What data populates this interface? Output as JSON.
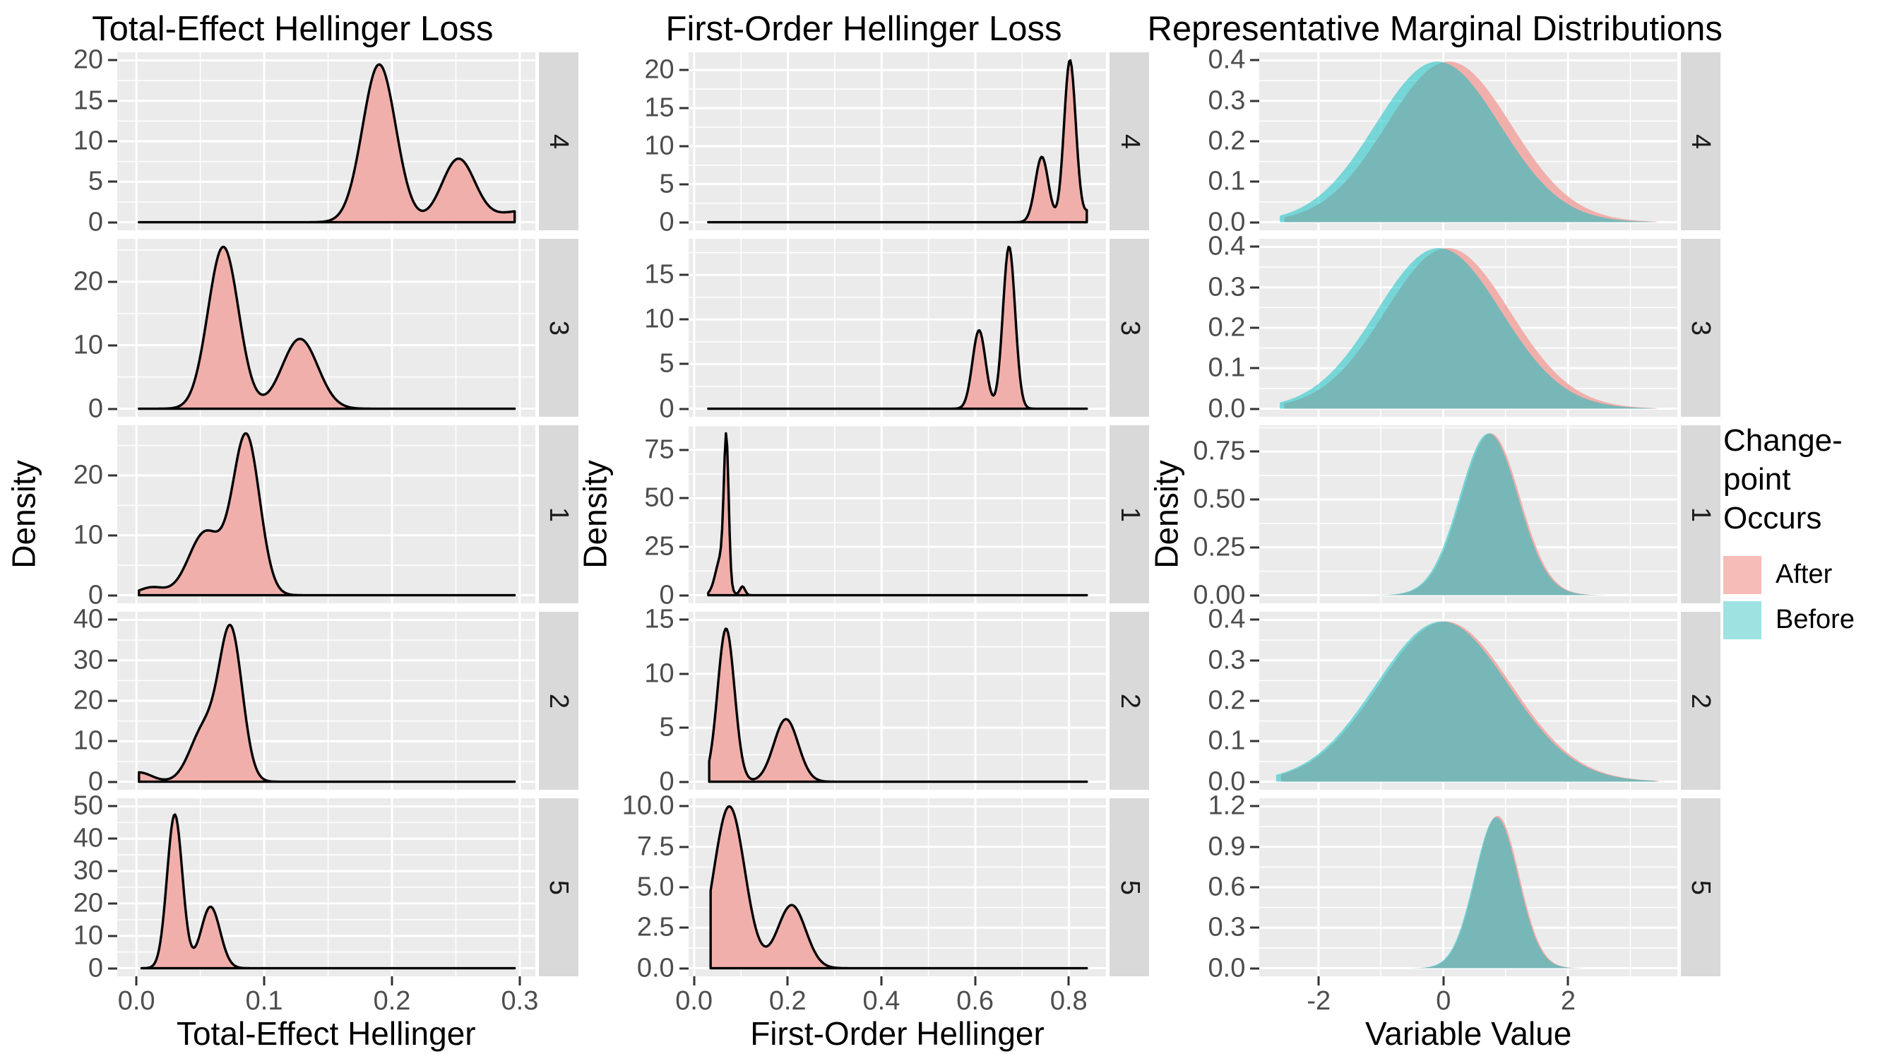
{
  "figure_type": "faceted_density_small_multiples",
  "facet_order": [
    "4",
    "3",
    "1",
    "2",
    "5"
  ],
  "style": {
    "panel_bg": "#EBEBEB",
    "strip_bg": "#D9D9D9",
    "grid_color": "#FFFFFF",
    "after_fill": "#F1AFAB",
    "before_fill": "rgba(0,191,196,0.5)",
    "density_stroke": "#000000",
    "tick_text": "#4D4D4D"
  },
  "legend": {
    "title_lines": [
      "Change-point",
      "Occurs"
    ],
    "items": [
      {
        "key": "after",
        "label": "After",
        "color": "#F6BCB7"
      },
      {
        "key": "before",
        "label": "Before",
        "color": "#9FE2E2"
      }
    ]
  },
  "chart_data": [
    {
      "type": "density",
      "title": "Total-Effect Hellinger Loss",
      "x_title": "Total-Effect Hellinger",
      "y_title": "Density",
      "xlim": [
        -0.015,
        0.312
      ],
      "xticks": {
        "values": [
          0.0,
          0.1,
          0.2,
          0.3
        ],
        "labels": [
          "0.0",
          "0.1",
          "0.2",
          "0.3"
        ]
      },
      "xminor": [
        0.05,
        0.15,
        0.25
      ],
      "panels": [
        {
          "facet": "4",
          "yticks": {
            "values": [
              0,
              5,
              10,
              15,
              20
            ],
            "labels": [
              "0",
              "5",
              "10",
              "15",
              "20"
            ]
          },
          "series": [
            {
              "legend": "After",
              "fill": "#F1AFAB",
              "stroke": "#000000",
              "domain": [
                0.002,
                0.296
              ],
              "components": [
                {
                  "x_center": 0.19,
                  "sigma": 0.013,
                  "peak_height": 19.5
                },
                {
                  "x_center": 0.252,
                  "sigma": 0.013,
                  "peak_height": 7.8
                },
                {
                  "x_center": 0.303,
                  "sigma": 0.02,
                  "peak_height": 1.4
                }
              ]
            }
          ]
        },
        {
          "facet": "3",
          "yticks": {
            "values": [
              0,
              10,
              20
            ],
            "labels": [
              "0",
              "10",
              "20"
            ]
          },
          "series": [
            {
              "legend": "After",
              "fill": "#F1AFAB",
              "stroke": "#000000",
              "domain": [
                0.002,
                0.296
              ],
              "components": [
                {
                  "x_center": 0.068,
                  "sigma": 0.012,
                  "peak_height": 25.5
                },
                {
                  "x_center": 0.128,
                  "sigma": 0.014,
                  "peak_height": 11.0
                }
              ]
            }
          ]
        },
        {
          "facet": "1",
          "yticks": {
            "values": [
              0,
              10,
              20
            ],
            "labels": [
              "0",
              "10",
              "20"
            ]
          },
          "series": [
            {
              "legend": "After",
              "fill": "#F1AFAB",
              "stroke": "#000000",
              "domain": [
                0.002,
                0.296
              ],
              "components": [
                {
                  "x_center": 0.012,
                  "sigma": 0.01,
                  "peak_height": 1.3
                },
                {
                  "x_center": 0.054,
                  "sigma": 0.013,
                  "peak_height": 10.5
                },
                {
                  "x_center": 0.086,
                  "sigma": 0.0105,
                  "peak_height": 26.5
                }
              ]
            }
          ]
        },
        {
          "facet": "2",
          "yticks": {
            "values": [
              0,
              10,
              20,
              30,
              40
            ],
            "labels": [
              "0",
              "10",
              "20",
              "30",
              "40"
            ]
          },
          "series": [
            {
              "legend": "After",
              "fill": "#F1AFAB",
              "stroke": "#000000",
              "domain": [
                0.002,
                0.296
              ],
              "components": [
                {
                  "x_center": 0.002,
                  "sigma": 0.01,
                  "peak_height": 2.3
                },
                {
                  "x_center": 0.053,
                  "sigma": 0.011,
                  "peak_height": 13.0
                },
                {
                  "x_center": 0.074,
                  "sigma": 0.009,
                  "peak_height": 36.5
                }
              ]
            }
          ]
        },
        {
          "facet": "5",
          "yticks": {
            "values": [
              0,
              10,
              20,
              30,
              40,
              50
            ],
            "labels": [
              "0",
              "10",
              "20",
              "30",
              "40",
              "50"
            ]
          },
          "series": [
            {
              "legend": "After",
              "fill": "#F1AFAB",
              "stroke": "#000000",
              "domain": [
                0.004,
                0.296
              ],
              "components": [
                {
                  "x_center": 0.03,
                  "sigma": 0.006,
                  "peak_height": 47.5
                },
                {
                  "x_center": 0.058,
                  "sigma": 0.0075,
                  "peak_height": 19.0
                }
              ]
            }
          ]
        }
      ]
    },
    {
      "type": "density",
      "title": "First-Order Hellinger Loss",
      "x_title": "First-Order Hellinger",
      "y_title": "Density",
      "xlim": [
        -0.012,
        0.88
      ],
      "xticks": {
        "values": [
          0.0,
          0.2,
          0.4,
          0.6,
          0.8
        ],
        "labels": [
          "0.0",
          "0.2",
          "0.4",
          "0.6",
          "0.8"
        ]
      },
      "xminor": [
        0.1,
        0.3,
        0.5,
        0.7
      ],
      "panels": [
        {
          "facet": "4",
          "yticks": {
            "values": [
              0,
              5,
              10,
              15,
              20
            ],
            "labels": [
              "0",
              "5",
              "10",
              "15",
              "20"
            ]
          },
          "series": [
            {
              "legend": "After",
              "fill": "#F1AFAB",
              "stroke": "#000000",
              "domain": [
                0.03,
                0.838
              ],
              "components": [
                {
                  "x_center": 0.742,
                  "sigma": 0.014,
                  "peak_height": 8.6
                },
                {
                  "x_center": 0.802,
                  "sigma": 0.0125,
                  "peak_height": 21.3
                },
                {
                  "x_center": 0.862,
                  "sigma": 0.02,
                  "peak_height": 2.6
                }
              ]
            }
          ]
        },
        {
          "facet": "3",
          "yticks": {
            "values": [
              0,
              5,
              10,
              15
            ],
            "labels": [
              "0",
              "5",
              "10",
              "15"
            ]
          },
          "series": [
            {
              "legend": "After",
              "fill": "#F1AFAB",
              "stroke": "#000000",
              "domain": [
                0.03,
                0.838
              ],
              "components": [
                {
                  "x_center": 0.608,
                  "sigma": 0.014,
                  "peak_height": 8.8
                },
                {
                  "x_center": 0.672,
                  "sigma": 0.013,
                  "peak_height": 18.2
                }
              ]
            }
          ]
        },
        {
          "facet": "1",
          "yticks": {
            "values": [
              0,
              25,
              50,
              75
            ],
            "labels": [
              "0",
              "25",
              "50",
              "75"
            ]
          },
          "series": [
            {
              "legend": "After",
              "fill": "#F1AFAB",
              "stroke": "#000000",
              "domain": [
                0.03,
                0.838
              ],
              "components": [
                {
                  "x_center": 0.058,
                  "sigma": 0.012,
                  "peak_height": 20.0
                },
                {
                  "x_center": 0.0685,
                  "sigma": 0.005,
                  "peak_height": 70.0
                },
                {
                  "x_center": 0.103,
                  "sigma": 0.0055,
                  "peak_height": 4.5
                }
              ]
            }
          ]
        },
        {
          "facet": "2",
          "yticks": {
            "values": [
              0,
              5,
              10,
              15
            ],
            "labels": [
              "0",
              "5",
              "10",
              "15"
            ]
          },
          "series": [
            {
              "legend": "After",
              "fill": "#F1AFAB",
              "stroke": "#000000",
              "domain": [
                0.032,
                0.838
              ],
              "components": [
                {
                  "x_center": 0.068,
                  "sigma": 0.018,
                  "peak_height": 14.2
                },
                {
                  "x_center": 0.196,
                  "sigma": 0.026,
                  "peak_height": 5.8
                }
              ]
            }
          ]
        },
        {
          "facet": "5",
          "yticks": {
            "values": [
              0,
              2.5,
              5,
              7.5,
              10
            ],
            "labels": [
              "0.0",
              "2.5",
              "5.0",
              "7.5",
              "10.0"
            ]
          },
          "series": [
            {
              "legend": "After",
              "fill": "#F1AFAB",
              "stroke": "#000000",
              "domain": [
                0.035,
                0.838
              ],
              "components": [
                {
                  "x_center": 0.075,
                  "sigma": 0.033,
                  "peak_height": 10.0
                },
                {
                  "x_center": 0.208,
                  "sigma": 0.03,
                  "peak_height": 3.9
                }
              ]
            }
          ]
        }
      ]
    },
    {
      "type": "density",
      "title": "Representative Marginal Distributions",
      "x_title": "Variable Value",
      "y_title": "Density",
      "xlim": [
        -2.95,
        3.75
      ],
      "xticks": {
        "values": [
          -2,
          0,
          2
        ],
        "labels": [
          "-2",
          "0",
          "2"
        ]
      },
      "xminor": [
        -1,
        1,
        3
      ],
      "panels": [
        {
          "facet": "4",
          "yticks": {
            "values": [
              0,
              0.1,
              0.2,
              0.3,
              0.4
            ],
            "labels": [
              "0.0",
              "0.1",
              "0.2",
              "0.3",
              "0.4"
            ]
          },
          "series": [
            {
              "legend": "After",
              "fill": "#F1AFAB",
              "stroke": null,
              "domain": [
                -2.55,
                3.42
              ],
              "components": [
                {
                  "x_center": 0.09,
                  "sigma": 1.0,
                  "peak_height": 0.397
                }
              ]
            },
            {
              "legend": "Before",
              "fill": "rgba(0,191,196,0.5)",
              "stroke": null,
              "domain": [
                -2.62,
                3.35
              ],
              "components": [
                {
                  "x_center": -0.09,
                  "sigma": 1.0,
                  "peak_height": 0.397
                }
              ]
            }
          ]
        },
        {
          "facet": "3",
          "yticks": {
            "values": [
              0,
              0.1,
              0.2,
              0.3,
              0.4
            ],
            "labels": [
              "0.0",
              "0.1",
              "0.2",
              "0.3",
              "0.4"
            ]
          },
          "series": [
            {
              "legend": "After",
              "fill": "#F1AFAB",
              "stroke": null,
              "domain": [
                -2.55,
                3.42
              ],
              "components": [
                {
                  "x_center": 0.07,
                  "sigma": 1.0,
                  "peak_height": 0.397
                }
              ]
            },
            {
              "legend": "Before",
              "fill": "rgba(0,191,196,0.5)",
              "stroke": null,
              "domain": [
                -2.62,
                3.35
              ],
              "components": [
                {
                  "x_center": -0.07,
                  "sigma": 1.0,
                  "peak_height": 0.397
                }
              ]
            }
          ]
        },
        {
          "facet": "1",
          "yticks": {
            "values": [
              0,
              0.25,
              0.5,
              0.75
            ],
            "labels": [
              "0.00",
              "0.25",
              "0.50",
              "0.75"
            ]
          },
          "series": [
            {
              "legend": "After",
              "fill": "#F1AFAB",
              "stroke": null,
              "domain": [
                -1.55,
                2.75
              ],
              "components": [
                {
                  "x_center": 0.76,
                  "sigma": 0.47,
                  "peak_height": 0.845
                }
              ]
            },
            {
              "legend": "Before",
              "fill": "rgba(0,191,196,0.5)",
              "stroke": null,
              "domain": [
                -1.6,
                2.7
              ],
              "components": [
                {
                  "x_center": 0.73,
                  "sigma": 0.47,
                  "peak_height": 0.845
                }
              ]
            }
          ]
        },
        {
          "facet": "2",
          "yticks": {
            "values": [
              0,
              0.1,
              0.2,
              0.3,
              0.4
            ],
            "labels": [
              "0.0",
              "0.1",
              "0.2",
              "0.3",
              "0.4"
            ]
          },
          "series": [
            {
              "legend": "After",
              "fill": "#F1AFAB",
              "stroke": null,
              "domain": [
                -2.6,
                3.45
              ],
              "components": [
                {
                  "x_center": 0.03,
                  "sigma": 1.06,
                  "peak_height": 0.396
                }
              ]
            },
            {
              "legend": "Before",
              "fill": "rgba(0,191,196,0.5)",
              "stroke": null,
              "domain": [
                -2.68,
                3.4
              ],
              "components": [
                {
                  "x_center": -0.02,
                  "sigma": 1.06,
                  "peak_height": 0.396
                }
              ]
            }
          ]
        },
        {
          "facet": "5",
          "yticks": {
            "values": [
              0,
              0.3,
              0.6,
              0.9,
              1.2
            ],
            "labels": [
              "0.0",
              "0.3",
              "0.6",
              "0.9",
              "1.2"
            ]
          },
          "series": [
            {
              "legend": "After",
              "fill": "#F1AFAB",
              "stroke": null,
              "domain": [
                -0.85,
                2.35
              ],
              "components": [
                {
                  "x_center": 0.87,
                  "sigma": 0.35,
                  "peak_height": 1.13
                }
              ]
            },
            {
              "legend": "Before",
              "fill": "rgba(0,191,196,0.5)",
              "stroke": null,
              "domain": [
                -0.9,
                2.3
              ],
              "components": [
                {
                  "x_center": 0.85,
                  "sigma": 0.35,
                  "peak_height": 1.12
                }
              ]
            }
          ]
        }
      ]
    }
  ]
}
